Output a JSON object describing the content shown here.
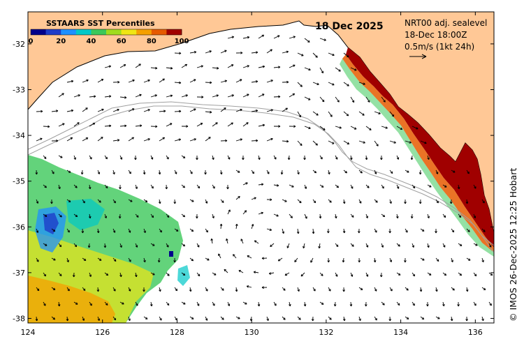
{
  "map": {
    "date": "18 Dec 2025",
    "legend": {
      "title": "SSTAARS SST Percentiles",
      "ticks": [
        "0",
        "20",
        "40",
        "60",
        "80",
        "100"
      ],
      "colors": [
        "#00008b",
        "#1e3cc8",
        "#1e90ff",
        "#00c8c8",
        "#3cc85a",
        "#a0dc1e",
        "#f0e614",
        "#f5a000",
        "#e65a00",
        "#a00000"
      ]
    },
    "info": {
      "line1": "NRT00 adj. sealevel",
      "line2": "18-Dec 18:00Z",
      "line3": "0.5m/s (1kt 24h)"
    },
    "credit": "© IMOS 26-Dec-2025 12:25 Hobart",
    "x_axis": {
      "min": 124,
      "max": 136.5,
      "ticks": [
        124,
        126,
        128,
        130,
        132,
        134,
        136
      ],
      "labels": [
        "124",
        "126",
        "128",
        "130",
        "132",
        "134",
        "136"
      ]
    },
    "y_axis": {
      "min": -38.1,
      "max": -31.3,
      "ticks": [
        -32,
        -33,
        -34,
        -35,
        -36,
        -37,
        -38
      ],
      "labels": [
        "-32",
        "-33",
        "-34",
        "-35",
        "-36",
        "-37",
        "-38"
      ]
    },
    "colors": {
      "land": "#ffc896",
      "ocean": "#ffffff",
      "contour": "#a0a0a0",
      "coast": "#000000",
      "hot": "#a00000"
    }
  }
}
